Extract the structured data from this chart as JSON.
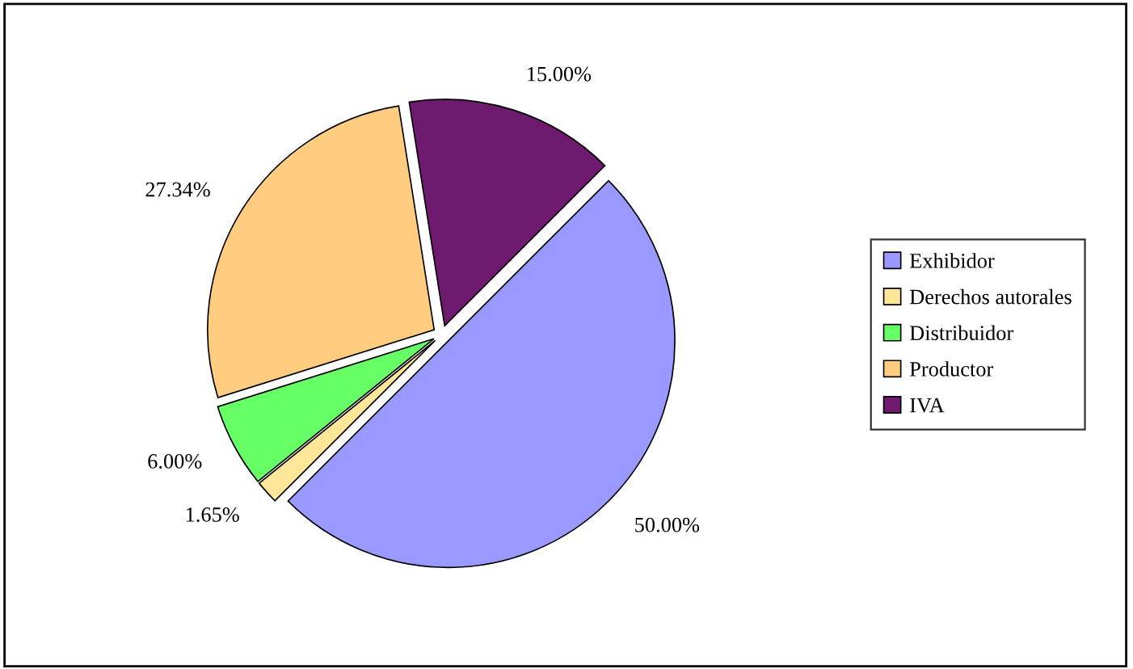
{
  "chart_data": {
    "type": "pie",
    "categories": [
      "Exhibidor",
      "Derechos autorales",
      "Distribuidor",
      "Productor",
      "IVA"
    ],
    "values": [
      50.0,
      1.65,
      6.0,
      27.34,
      15.0
    ],
    "value_labels": [
      "50.00%",
      "1.65%",
      "6.00%",
      "27.34%",
      "15.00%"
    ],
    "colors": [
      "#9999ff",
      "#ffe699",
      "#66ff66",
      "#ffcc80",
      "#6e1a6e"
    ],
    "legend": "right"
  }
}
